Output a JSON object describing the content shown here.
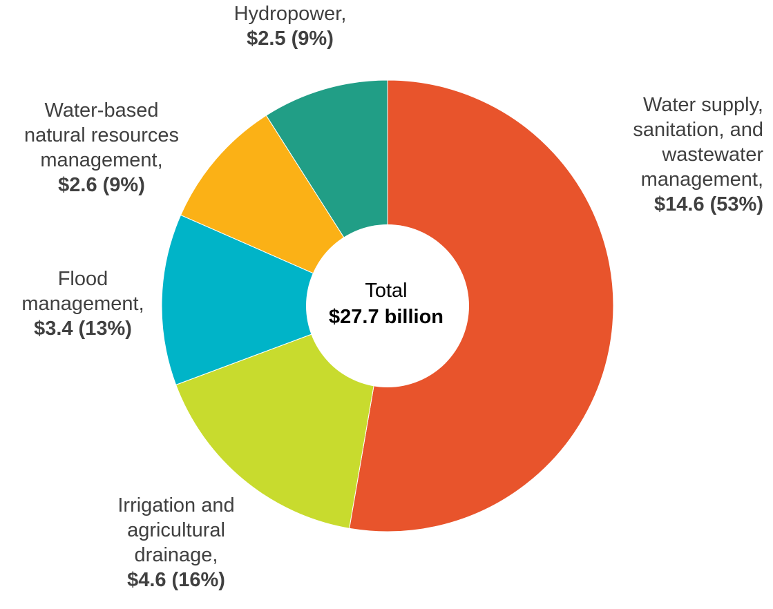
{
  "chart_data": {
    "type": "pie",
    "donut": true,
    "unit": "$ billion",
    "center": {
      "label": "Total",
      "value": "$27.7 billion"
    },
    "slices": [
      {
        "name": "Water supply,\nsanitation, and\nwastewater\nmanagement,",
        "value": 14.6,
        "percent": 53,
        "value_text": "$14.6 (53%)",
        "color": "#E8542C"
      },
      {
        "name": "Irrigation and\nagricultural\ndrainage,",
        "value": 4.6,
        "percent": 16,
        "value_text": "$4.6 (16%)",
        "color": "#C8DB2E"
      },
      {
        "name": "Flood\nmanagement,",
        "value": 3.4,
        "percent": 13,
        "value_text": "$3.4 (13%)",
        "color": "#00B4C8"
      },
      {
        "name": "Water-based\nnatural resources\nmanagement,",
        "value": 2.6,
        "percent": 9,
        "value_text": "$2.6 (9%)",
        "color": "#FBB116"
      },
      {
        "name": "Hydropower,",
        "value": 2.5,
        "percent": 9,
        "value_text": "$2.5 (9%)",
        "color": "#219E86"
      }
    ]
  }
}
